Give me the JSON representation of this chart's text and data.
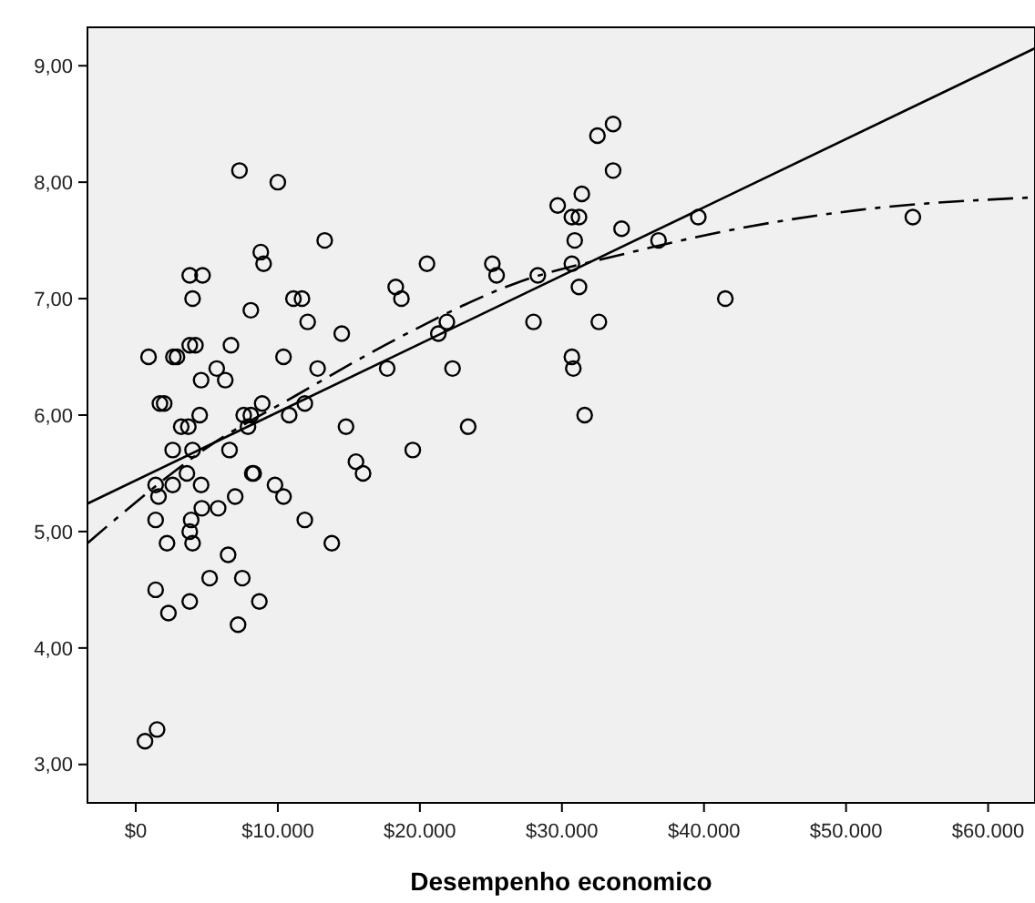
{
  "chart_data": {
    "type": "scatter",
    "xlabel": "Desempenho economico",
    "xlim": [
      -3400,
      63300
    ],
    "ylim": [
      2.67,
      9.33
    ],
    "xticks": [
      {
        "value": 0,
        "label": "$0"
      },
      {
        "value": 10000,
        "label": "$10.000"
      },
      {
        "value": 20000,
        "label": "$20.000"
      },
      {
        "value": 30000,
        "label": "$30.000"
      },
      {
        "value": 40000,
        "label": "$40.000"
      },
      {
        "value": 50000,
        "label": "$50.000"
      },
      {
        "value": 60000,
        "label": "$60.000"
      }
    ],
    "yticks": [
      {
        "value": 3,
        "label": "3,00"
      },
      {
        "value": 4,
        "label": "4,00"
      },
      {
        "value": 5,
        "label": "5,00"
      },
      {
        "value": 6,
        "label": "6,00"
      },
      {
        "value": 7,
        "label": "7,00"
      },
      {
        "value": 8,
        "label": "8,00"
      },
      {
        "value": 9,
        "label": "9,00"
      }
    ],
    "grid": false,
    "series": [
      {
        "color": "#000000",
        "marker": "circle",
        "x": [
          900,
          1400,
          1600,
          1400,
          2200,
          1400,
          2300,
          650,
          1500,
          1700,
          2000,
          2650,
          2900,
          2600,
          2600,
          3200,
          3700,
          3600,
          3800,
          4700,
          4000,
          3800,
          4200,
          4600,
          4500,
          4000,
          4600,
          4650,
          3900,
          3800,
          4000,
          3800,
          5200,
          5800,
          5700,
          6300,
          6700,
          6600,
          7000,
          6500,
          7500,
          7200,
          7300,
          8100,
          7600,
          8100,
          7900,
          8200,
          8300,
          8700,
          8800,
          9000,
          8900,
          10000,
          10400,
          9800,
          10400,
          10800,
          11100,
          11700,
          12100,
          11900,
          11900,
          12800,
          13300,
          13800,
          14500,
          14800,
          15500,
          16000,
          17700,
          18300,
          18700,
          19500,
          20500,
          21300,
          21900,
          22300,
          23400,
          25100,
          25400,
          28000,
          28300,
          29700,
          30700,
          31200,
          31400,
          30900,
          30700,
          31200,
          30700,
          30800,
          31600,
          32500,
          33600,
          33600,
          32600,
          34200,
          36800,
          39600,
          41500,
          54700
        ],
        "values": [
          6.5,
          5.4,
          5.3,
          5.1,
          4.9,
          4.5,
          4.3,
          3.2,
          3.3,
          6.1,
          6.1,
          6.5,
          6.5,
          5.7,
          5.4,
          5.9,
          5.9,
          5.5,
          7.2,
          7.2,
          7.0,
          6.6,
          6.6,
          6.3,
          6.0,
          5.7,
          5.4,
          5.2,
          5.1,
          5.0,
          4.9,
          4.4,
          4.6,
          5.2,
          6.4,
          6.3,
          6.6,
          5.7,
          5.3,
          4.8,
          4.6,
          4.2,
          8.1,
          6.9,
          6.0,
          6.0,
          5.9,
          5.5,
          5.5,
          4.4,
          7.4,
          7.3,
          6.1,
          8.0,
          6.5,
          5.4,
          5.3,
          6.0,
          7.0,
          7.0,
          6.8,
          6.1,
          5.1,
          6.4,
          7.5,
          4.9,
          6.7,
          5.9,
          5.6,
          5.5,
          6.4,
          7.1,
          7.0,
          5.7,
          7.3,
          6.7,
          6.8,
          6.4,
          5.9,
          7.3,
          7.2,
          6.8,
          7.2,
          7.8,
          7.7,
          7.7,
          7.9,
          7.5,
          7.3,
          7.1,
          6.5,
          6.4,
          6.0,
          8.4,
          8.5,
          8.1,
          6.8,
          7.6,
          7.5,
          7.7,
          7.0,
          7.7
        ]
      },
      {
        "type": "line",
        "color": "#000000",
        "line_style": "solid",
        "x": [
          -3400,
          63300
        ],
        "values": [
          5.24,
          9.15
        ]
      },
      {
        "type": "line",
        "color": "#000000",
        "line_style": "dashed",
        "x": [
          -3400,
          -800,
          5000,
          11300,
          18300,
          26700,
          34600,
          41500,
          50800,
          63300
        ],
        "values": [
          4.9,
          5.17,
          5.72,
          6.17,
          6.65,
          7.13,
          7.39,
          7.58,
          7.76,
          7.87
        ]
      }
    ]
  }
}
